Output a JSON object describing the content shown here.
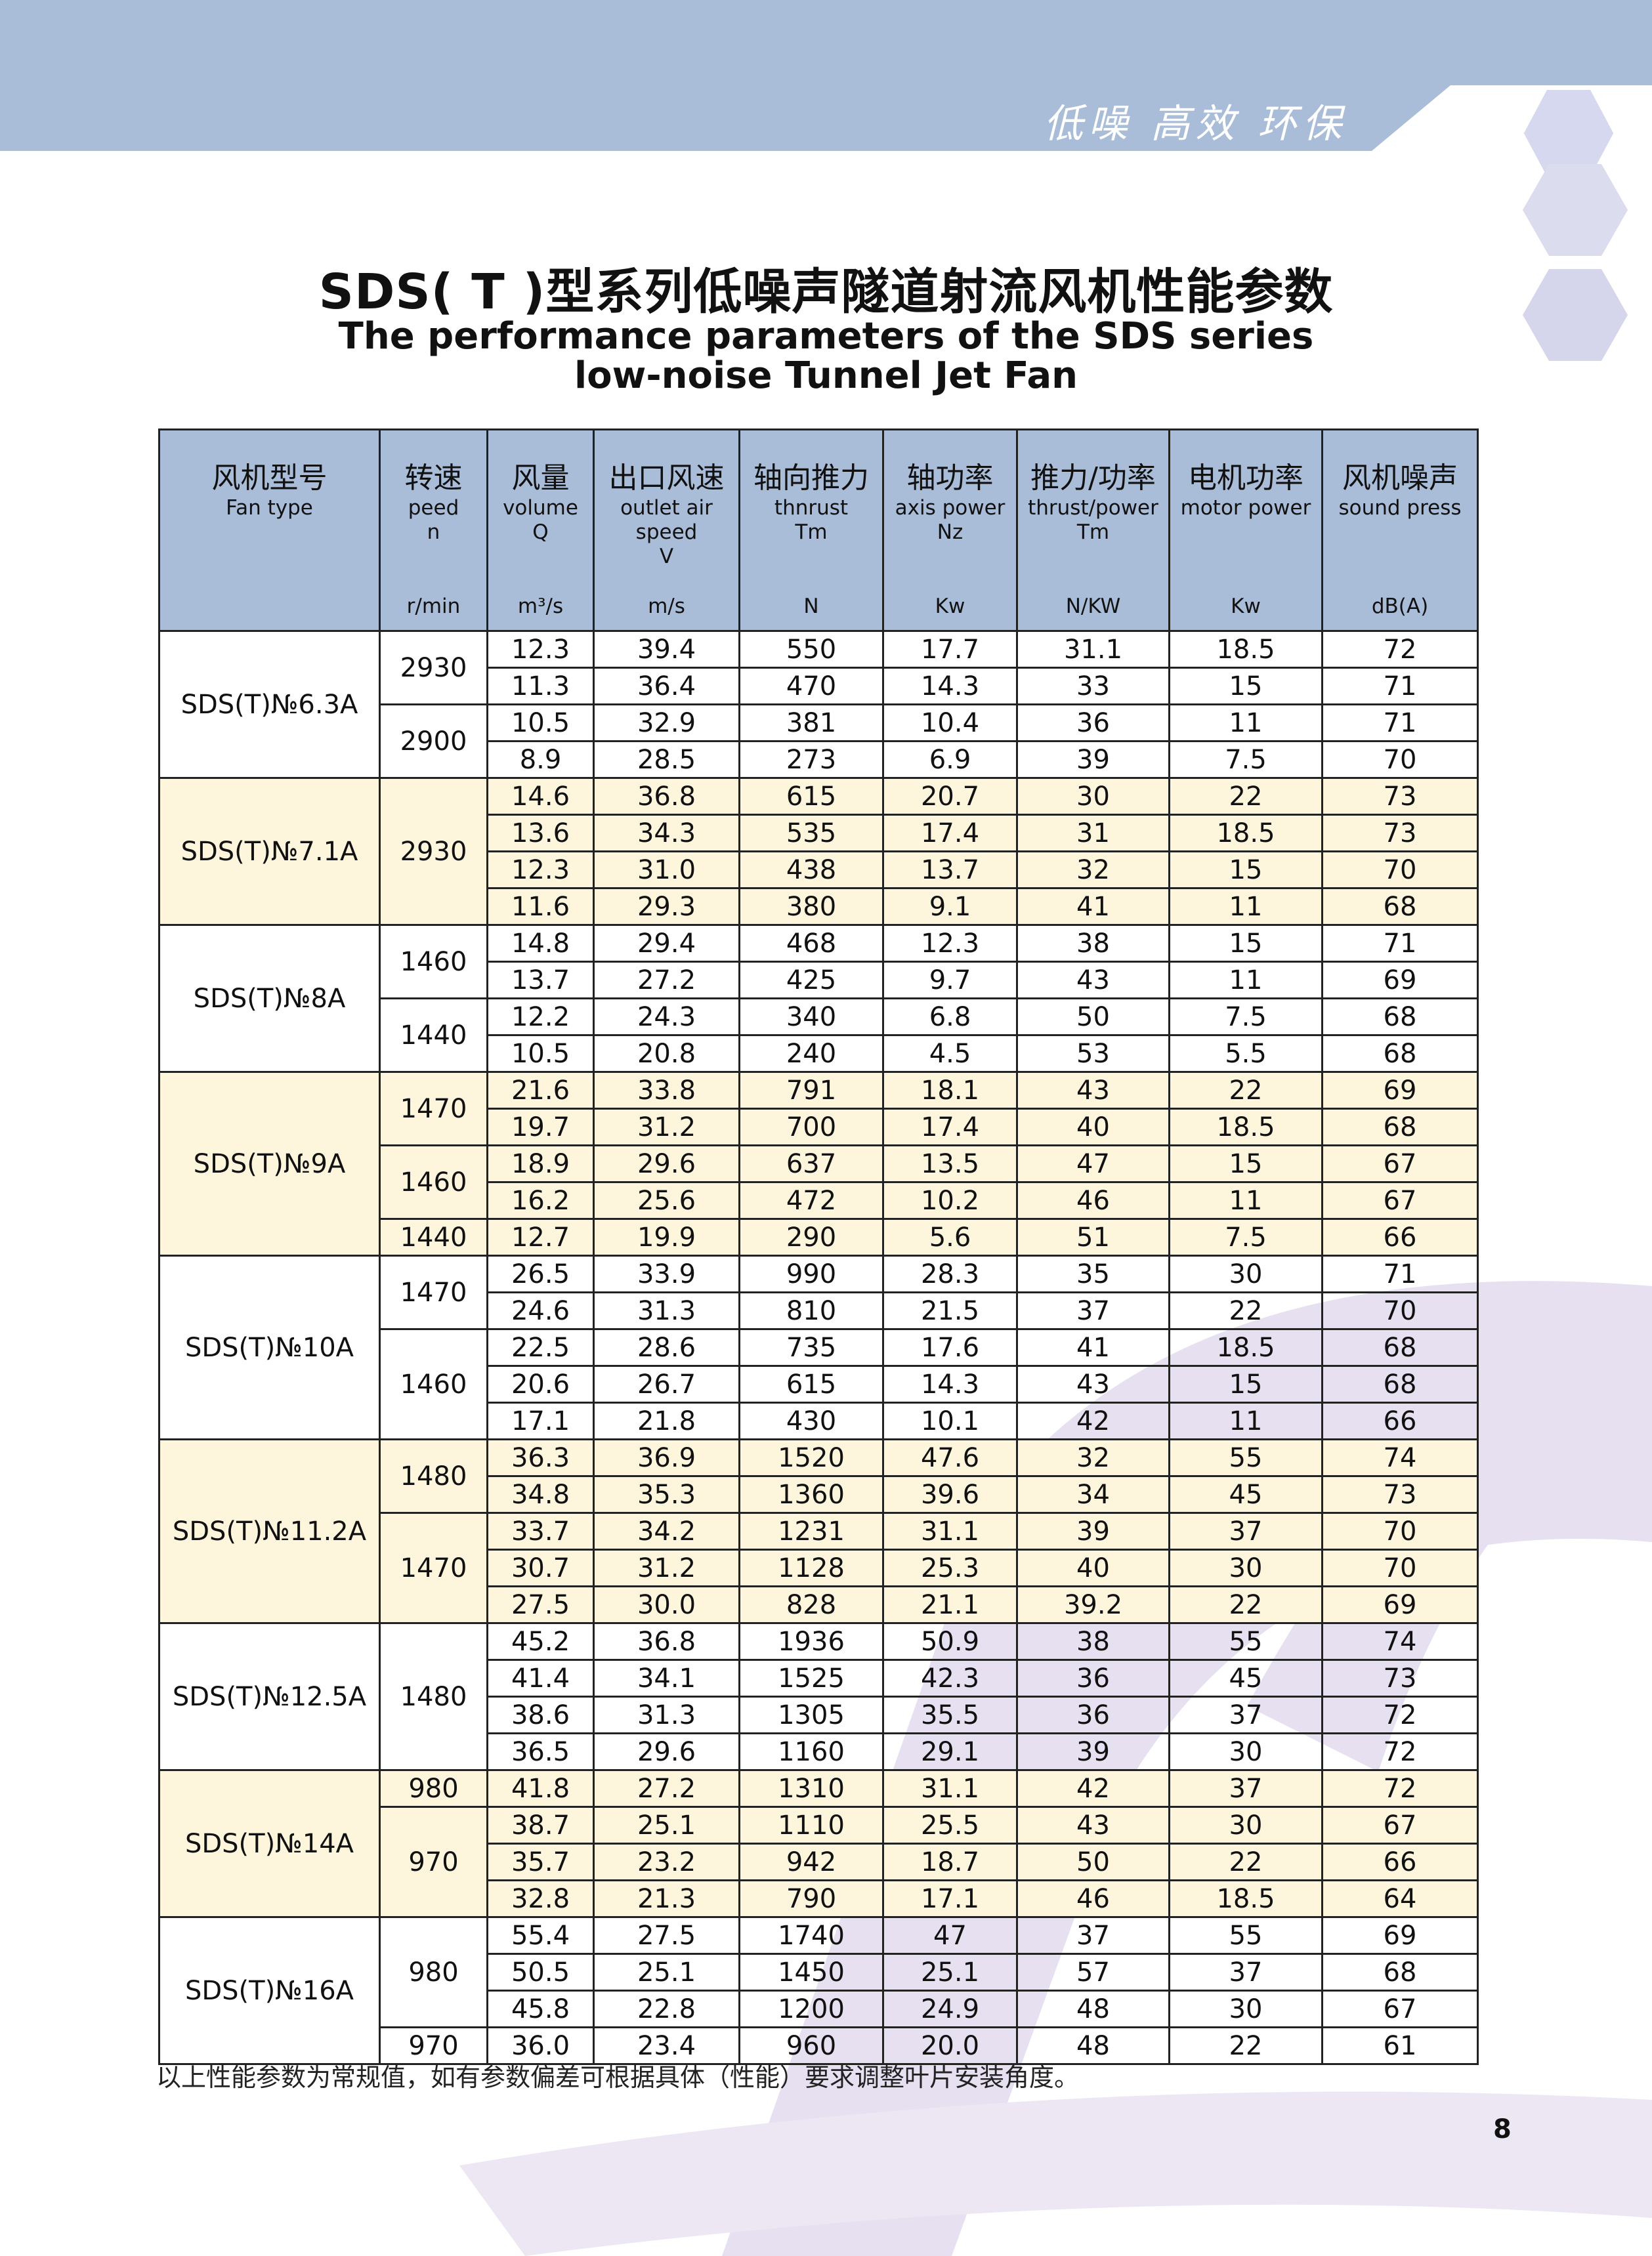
{
  "header": {
    "slogan": "低噪 高效 环保"
  },
  "title": {
    "zh": "SDS( T )型系列低噪声隧道射流风机性能参数",
    "en": [
      "The performance parameters of the SDS series",
      "low-noise Tunnel Jet Fan"
    ]
  },
  "table": {
    "columns": [
      {
        "zh": "风机型号",
        "en": [
          "Fan type"
        ],
        "unit": ""
      },
      {
        "zh": "转速",
        "en": [
          "peed",
          "n"
        ],
        "unit": "r/min"
      },
      {
        "zh": "风量",
        "en": [
          "volume",
          "Q"
        ],
        "unit": "m³/s"
      },
      {
        "zh": "出口风速",
        "en": [
          "outlet air",
          "speed",
          "V"
        ],
        "unit": "m/s"
      },
      {
        "zh": "轴向推力",
        "en": [
          "thnrust",
          "Tm"
        ],
        "unit": "N"
      },
      {
        "zh": "轴功率",
        "en": [
          "axis power",
          "Nz"
        ],
        "unit": "Kw"
      },
      {
        "zh": "推力/功率",
        "en": [
          "thrust/power",
          "Tm"
        ],
        "unit": "N/KW"
      },
      {
        "zh": "电机功率",
        "en": [
          "motor power"
        ],
        "unit": "Kw"
      },
      {
        "zh": "风机噪声",
        "en": [
          "sound press"
        ],
        "unit": "dB(A)"
      }
    ],
    "groups": [
      {
        "model": "SDS(T)№6.3A",
        "speeds": [
          {
            "speed": "2930",
            "rows": [
              [
                "12.3",
                "39.4",
                "550",
                "17.7",
                "31.1",
                "18.5",
                "72"
              ],
              [
                "11.3",
                "36.4",
                "470",
                "14.3",
                "33",
                "15",
                "71"
              ]
            ]
          },
          {
            "speed": "2900",
            "rows": [
              [
                "10.5",
                "32.9",
                "381",
                "10.4",
                "36",
                "11",
                "71"
              ],
              [
                "8.9",
                "28.5",
                "273",
                "6.9",
                "39",
                "7.5",
                "70"
              ]
            ]
          }
        ]
      },
      {
        "model": "SDS(T)№7.1A",
        "speeds": [
          {
            "speed": "2930",
            "rows": [
              [
                "14.6",
                "36.8",
                "615",
                "20.7",
                "30",
                "22",
                "73"
              ],
              [
                "13.6",
                "34.3",
                "535",
                "17.4",
                "31",
                "18.5",
                "73"
              ],
              [
                "12.3",
                "31.0",
                "438",
                "13.7",
                "32",
                "15",
                "70"
              ],
              [
                "11.6",
                "29.3",
                "380",
                "9.1",
                "41",
                "11",
                "68"
              ]
            ]
          }
        ]
      },
      {
        "model": "SDS(T)№8A",
        "speeds": [
          {
            "speed": "1460",
            "rows": [
              [
                "14.8",
                "29.4",
                "468",
                "12.3",
                "38",
                "15",
                "71"
              ],
              [
                "13.7",
                "27.2",
                "425",
                "9.7",
                "43",
                "11",
                "69"
              ]
            ]
          },
          {
            "speed": "1440",
            "rows": [
              [
                "12.2",
                "24.3",
                "340",
                "6.8",
                "50",
                "7.5",
                "68"
              ],
              [
                "10.5",
                "20.8",
                "240",
                "4.5",
                "53",
                "5.5",
                "68"
              ]
            ]
          }
        ]
      },
      {
        "model": "SDS(T)№9A",
        "speeds": [
          {
            "speed": "1470",
            "rows": [
              [
                "21.6",
                "33.8",
                "791",
                "18.1",
                "43",
                "22",
                "69"
              ],
              [
                "19.7",
                "31.2",
                "700",
                "17.4",
                "40",
                "18.5",
                "68"
              ]
            ]
          },
          {
            "speed": "1460",
            "rows": [
              [
                "18.9",
                "29.6",
                "637",
                "13.5",
                "47",
                "15",
                "67"
              ],
              [
                "16.2",
                "25.6",
                "472",
                "10.2",
                "46",
                "11",
                "67"
              ]
            ]
          },
          {
            "speed": "1440",
            "rows": [
              [
                "12.7",
                "19.9",
                "290",
                "5.6",
                "51",
                "7.5",
                "66"
              ]
            ]
          }
        ]
      },
      {
        "model": "SDS(T)№10A",
        "speeds": [
          {
            "speed": "1470",
            "rows": [
              [
                "26.5",
                "33.9",
                "990",
                "28.3",
                "35",
                "30",
                "71"
              ],
              [
                "24.6",
                "31.3",
                "810",
                "21.5",
                "37",
                "22",
                "70"
              ]
            ]
          },
          {
            "speed": "1460",
            "rows": [
              [
                "22.5",
                "28.6",
                "735",
                "17.6",
                "41",
                "18.5",
                "68"
              ],
              [
                "20.6",
                "26.7",
                "615",
                "14.3",
                "43",
                "15",
                "68"
              ],
              [
                "17.1",
                "21.8",
                "430",
                "10.1",
                "42",
                "11",
                "66"
              ]
            ]
          }
        ]
      },
      {
        "model": "SDS(T)№11.2A",
        "speeds": [
          {
            "speed": "1480",
            "rows": [
              [
                "36.3",
                "36.9",
                "1520",
                "47.6",
                "32",
                "55",
                "74"
              ],
              [
                "34.8",
                "35.3",
                "1360",
                "39.6",
                "34",
                "45",
                "73"
              ]
            ]
          },
          {
            "speed": "1470",
            "rows": [
              [
                "33.7",
                "34.2",
                "1231",
                "31.1",
                "39",
                "37",
                "70"
              ],
              [
                "30.7",
                "31.2",
                "1128",
                "25.3",
                "40",
                "30",
                "70"
              ],
              [
                "27.5",
                "30.0",
                "828",
                "21.1",
                "39.2",
                "22",
                "69"
              ]
            ]
          }
        ]
      },
      {
        "model": "SDS(T)№12.5A",
        "speeds": [
          {
            "speed": "1480",
            "rows": [
              [
                "45.2",
                "36.8",
                "1936",
                "50.9",
                "38",
                "55",
                "74"
              ],
              [
                "41.4",
                "34.1",
                "1525",
                "42.3",
                "36",
                "45",
                "73"
              ],
              [
                "38.6",
                "31.3",
                "1305",
                "35.5",
                "36",
                "37",
                "72"
              ],
              [
                "36.5",
                "29.6",
                "1160",
                "29.1",
                "39",
                "30",
                "72"
              ]
            ]
          }
        ]
      },
      {
        "model": "SDS(T)№14A",
        "speeds": [
          {
            "speed": "980",
            "rows": [
              [
                "41.8",
                "27.2",
                "1310",
                "31.1",
                "42",
                "37",
                "72"
              ]
            ]
          },
          {
            "speed": "970",
            "rows": [
              [
                "38.7",
                "25.1",
                "1110",
                "25.5",
                "43",
                "30",
                "67"
              ],
              [
                "35.7",
                "23.2",
                "942",
                "18.7",
                "50",
                "22",
                "66"
              ],
              [
                "32.8",
                "21.3",
                "790",
                "17.1",
                "46",
                "18.5",
                "64"
              ]
            ]
          }
        ]
      },
      {
        "model": "SDS(T)№16A",
        "speeds": [
          {
            "speed": "980",
            "rows": [
              [
                "55.4",
                "27.5",
                "1740",
                "47",
                "37",
                "55",
                "69"
              ],
              [
                "50.5",
                "25.1",
                "1450",
                "25.1",
                "57",
                "37",
                "68"
              ],
              [
                "45.8",
                "22.8",
                "1200",
                "24.9",
                "48",
                "30",
                "67"
              ]
            ]
          },
          {
            "speed": "970",
            "rows": [
              [
                "36.0",
                "23.4",
                "960",
                "20.0",
                "48",
                "22",
                "61"
              ]
            ]
          }
        ]
      }
    ]
  },
  "footnote": "以上性能参数为常规值，如有参数偏差可根据具体（性能）要求调整叶片安装角度。",
  "page_number": "8"
}
